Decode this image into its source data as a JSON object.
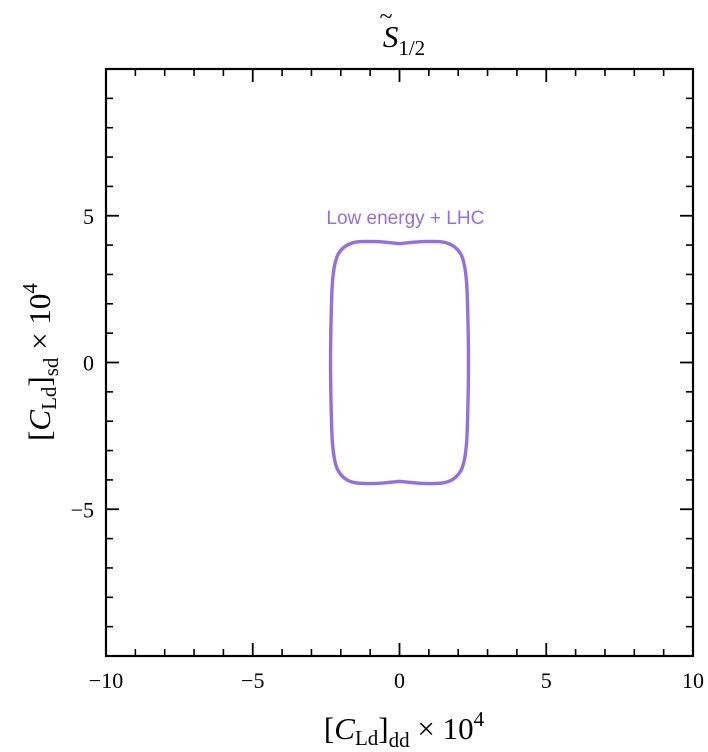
{
  "chart_data": {
    "type": "line",
    "title": {
      "main": "S",
      "sub": "1/2",
      "accent": "~"
    },
    "xlabel": {
      "pre": "[",
      "C": "C",
      "csub": "Ld",
      "close": "]",
      "sub": "dd",
      "times": " × 10",
      "exp": "4"
    },
    "ylabel": {
      "pre": "[",
      "C": "C",
      "csub": "Ld",
      "close": "]",
      "sub": "sd",
      "times": " × 10",
      "exp": "4"
    },
    "xlim": [
      -10,
      10
    ],
    "ylim": [
      -10,
      10
    ],
    "x_ticks": [
      -10,
      -5,
      0,
      5,
      10
    ],
    "y_ticks": [
      -5,
      0,
      5
    ],
    "x_tick_labels": [
      "−10",
      "−5",
      "0",
      "5",
      "10"
    ],
    "y_tick_labels": [
      "−5",
      "0",
      "5"
    ],
    "minor_step": 1,
    "grid": false,
    "series": [
      {
        "name": "Low energy + LHC",
        "color": "#9370DB",
        "closed": true,
        "points": [
          [
            -0.2,
            4.07
          ],
          [
            -0.8,
            4.12
          ],
          [
            -1.5,
            4.1
          ],
          [
            -1.9,
            3.92
          ],
          [
            -2.15,
            3.55
          ],
          [
            -2.28,
            2.8
          ],
          [
            -2.33,
            1.5
          ],
          [
            -2.35,
            0.0
          ],
          [
            -2.33,
            -1.5
          ],
          [
            -2.28,
            -2.8
          ],
          [
            -2.15,
            -3.55
          ],
          [
            -1.9,
            -3.92
          ],
          [
            -1.5,
            -4.1
          ],
          [
            -0.8,
            -4.12
          ],
          [
            -0.2,
            -4.07
          ],
          [
            0.0,
            -4.05
          ],
          [
            0.2,
            -4.07
          ],
          [
            0.8,
            -4.12
          ],
          [
            1.5,
            -4.1
          ],
          [
            1.9,
            -3.92
          ],
          [
            2.15,
            -3.55
          ],
          [
            2.28,
            -2.8
          ],
          [
            2.33,
            -1.5
          ],
          [
            2.35,
            0.0
          ],
          [
            2.33,
            1.5
          ],
          [
            2.28,
            2.8
          ],
          [
            2.15,
            3.55
          ],
          [
            1.9,
            3.92
          ],
          [
            1.5,
            4.1
          ],
          [
            0.8,
            4.12
          ],
          [
            0.2,
            4.07
          ],
          [
            0.0,
            4.05
          ]
        ]
      }
    ],
    "annotations": [
      {
        "text": "Low energy + LHC",
        "x": 0.2,
        "y": 4.95,
        "color": "#9370DB"
      }
    ]
  }
}
